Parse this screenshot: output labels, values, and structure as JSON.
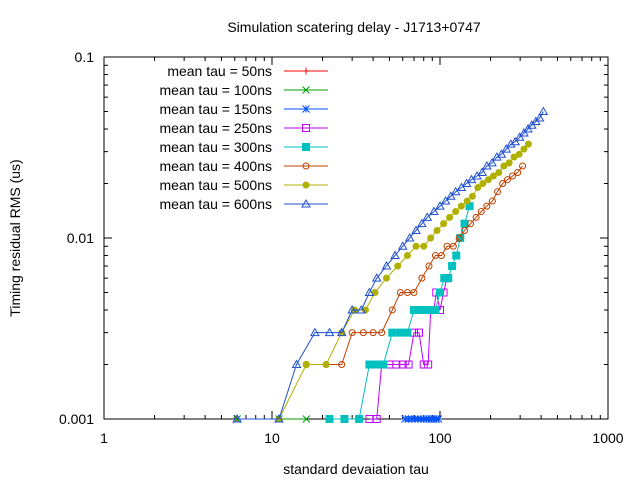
{
  "chart_data": {
    "type": "scatter",
    "title": "Simulation scatering delay - J1713+0747",
    "xlabel": "standard devaiation tau",
    "ylabel": "Timing residual RMS (us)",
    "xscale": "log",
    "yscale": "log",
    "xlim": [
      1,
      1000
    ],
    "ylim": [
      0.001,
      0.1
    ],
    "xticks": [
      {
        "value": 1,
        "label": "1"
      },
      {
        "value": 10,
        "label": "10"
      },
      {
        "value": 100,
        "label": "100"
      },
      {
        "value": 1000,
        "label": "1000"
      }
    ],
    "yticks": [
      {
        "value": 0.001,
        "label": "0.001"
      },
      {
        "value": 0.01,
        "label": "0.01"
      },
      {
        "value": 0.1,
        "label": "0.1"
      }
    ],
    "grid": false,
    "legend_position": "top-left",
    "series": [
      {
        "name": "mean tau = 50ns",
        "color": "#ff0000",
        "marker": "plus",
        "x": [
          6.2
        ],
        "y": [
          0.001
        ]
      },
      {
        "name": "mean tau = 100ns",
        "color": "#00a000",
        "marker": "cross",
        "x": [
          6.2,
          11,
          16
        ],
        "y": [
          0.001,
          0.001,
          0.001
        ]
      },
      {
        "name": "mean tau = 150ns",
        "color": "#0050ff",
        "marker": "star",
        "x": [
          62,
          65,
          68,
          71,
          74,
          77,
          80,
          83,
          86,
          89,
          92,
          95,
          98
        ],
        "y": [
          0.001,
          0.001,
          0.001,
          0.001,
          0.001,
          0.001,
          0.001,
          0.001,
          0.001,
          0.001,
          0.001,
          0.001,
          0.001
        ]
      },
      {
        "name": "mean tau = 250ns",
        "color": "#c000ff",
        "marker": "square-open",
        "x": [
          38,
          42,
          45,
          50,
          55,
          60,
          65,
          70,
          75,
          80,
          85,
          88,
          92,
          95,
          100,
          105,
          110
        ],
        "y": [
          0.001,
          0.001,
          0.002,
          0.002,
          0.002,
          0.002,
          0.002,
          0.003,
          0.003,
          0.002,
          0.002,
          0.004,
          0.004,
          0.005,
          0.004,
          0.005,
          0.006
        ]
      },
      {
        "name": "mean tau = 300ns",
        "color": "#00c0c0",
        "marker": "square-filled",
        "x": [
          22,
          27,
          33,
          38,
          42,
          46,
          52,
          58,
          64,
          70,
          76,
          82,
          88,
          94,
          100,
          106,
          112,
          118,
          125,
          132,
          140,
          150
        ],
        "y": [
          0.001,
          0.001,
          0.001,
          0.002,
          0.002,
          0.002,
          0.003,
          0.003,
          0.003,
          0.004,
          0.004,
          0.004,
          0.004,
          0.004,
          0.005,
          0.006,
          0.006,
          0.007,
          0.008,
          0.01,
          0.012,
          0.015
        ]
      },
      {
        "name": "mean tau = 400ns",
        "color": "#c04000",
        "marker": "circle-open",
        "x": [
          16,
          21,
          26,
          30,
          35,
          40,
          45,
          52,
          58,
          64,
          70,
          78,
          86,
          94,
          102,
          110,
          120,
          130,
          140,
          152,
          164,
          176,
          190,
          205,
          220,
          236,
          252,
          270,
          290,
          310
        ],
        "y": [
          0.002,
          0.002,
          0.002,
          0.003,
          0.003,
          0.003,
          0.003,
          0.004,
          0.005,
          0.005,
          0.005,
          0.006,
          0.007,
          0.008,
          0.008,
          0.009,
          0.009,
          0.01,
          0.011,
          0.012,
          0.013,
          0.014,
          0.015,
          0.016,
          0.018,
          0.02,
          0.021,
          0.022,
          0.023,
          0.025
        ]
      },
      {
        "name": "mean tau = 500ns",
        "color": "#b0b000",
        "marker": "circle-filled",
        "x": [
          11,
          16,
          21,
          26,
          31,
          36,
          41,
          48,
          56,
          64,
          72,
          80,
          88,
          96,
          105,
          114,
          124,
          134,
          145,
          156,
          168,
          180,
          194,
          208,
          224,
          240,
          258,
          276,
          296,
          316,
          336
        ],
        "y": [
          0.001,
          0.002,
          0.002,
          0.003,
          0.004,
          0.004,
          0.005,
          0.006,
          0.007,
          0.008,
          0.009,
          0.009,
          0.01,
          0.011,
          0.012,
          0.013,
          0.014,
          0.015,
          0.016,
          0.017,
          0.019,
          0.02,
          0.021,
          0.022,
          0.023,
          0.025,
          0.026,
          0.028,
          0.029,
          0.031,
          0.033
        ]
      },
      {
        "name": "mean tau = 600ns",
        "color": "#2050d0",
        "marker": "triangle-open",
        "x": [
          6.2,
          11,
          14,
          18,
          22,
          26,
          30,
          34,
          38,
          42,
          48,
          54,
          60,
          66,
          72,
          78,
          84,
          92,
          100,
          108,
          116,
          124,
          134,
          144,
          154,
          166,
          178,
          190,
          204,
          218,
          232,
          248,
          264,
          280,
          298,
          316,
          334,
          352,
          372,
          392,
          412
        ],
        "y": [
          0.001,
          0.001,
          0.002,
          0.003,
          0.003,
          0.003,
          0.004,
          0.004,
          0.005,
          0.006,
          0.007,
          0.008,
          0.009,
          0.01,
          0.011,
          0.012,
          0.013,
          0.014,
          0.015,
          0.016,
          0.017,
          0.018,
          0.019,
          0.02,
          0.021,
          0.022,
          0.023,
          0.025,
          0.026,
          0.028,
          0.029,
          0.031,
          0.033,
          0.034,
          0.036,
          0.038,
          0.04,
          0.042,
          0.044,
          0.046,
          0.05
        ]
      }
    ]
  }
}
